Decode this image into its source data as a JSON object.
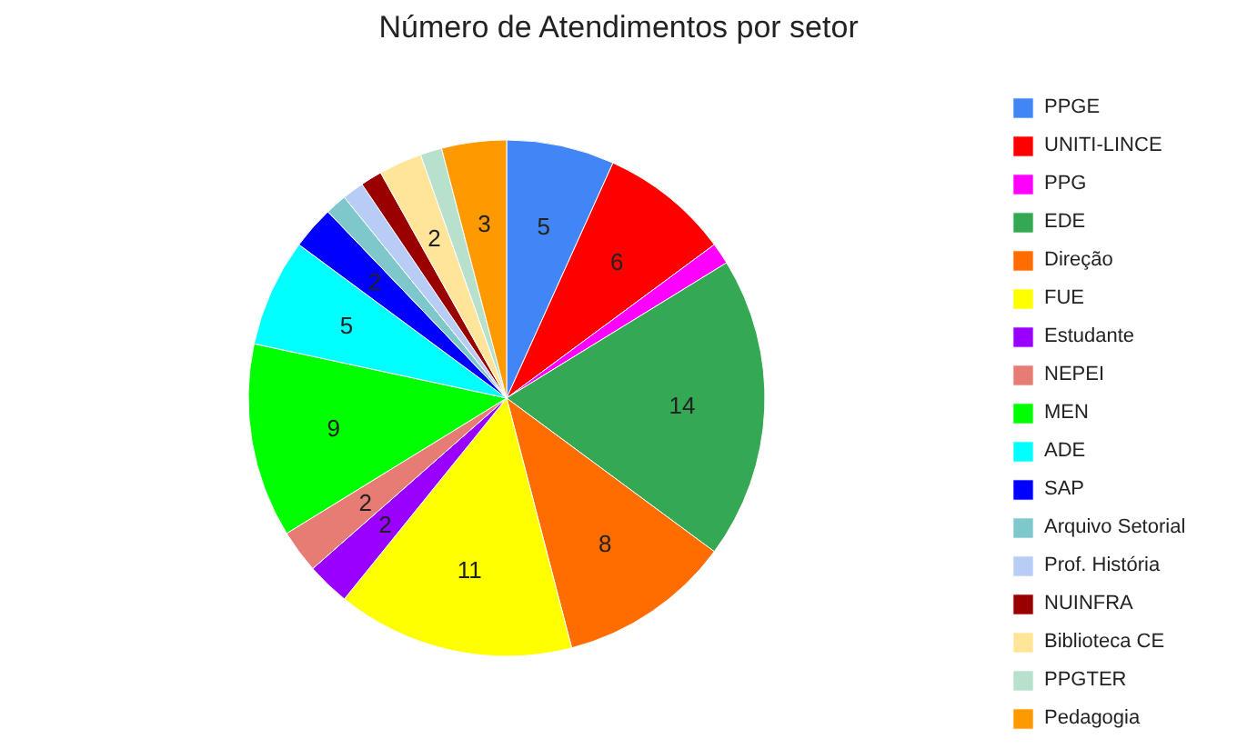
{
  "chart_data": {
    "type": "pie",
    "title": "Número de Atendimentos por setor",
    "categories": [
      "PPGE",
      "UNITI-LINCE",
      "PPG",
      "EDE",
      "Direção",
      "FUE",
      "Estudante",
      "NEPEI",
      "MEN",
      "ADE",
      "SAP",
      "Arquivo Setorial",
      "Prof. História",
      "NUINFRA",
      "Biblioteca CE",
      "PPGTER",
      "Pedagogia"
    ],
    "values": [
      5,
      6,
      1,
      14,
      8,
      11,
      2,
      2,
      9,
      5,
      2,
      1,
      1,
      1,
      2,
      1,
      3
    ],
    "colors": [
      "#4285f4",
      "#ff0000",
      "#ff00ff",
      "#34a853",
      "#ff6d01",
      "#ffff00",
      "#9900ff",
      "#e67c73",
      "#00ff00",
      "#00ffff",
      "#0000ff",
      "#7ec8cc",
      "#b7cdf5",
      "#990000",
      "#ffe599",
      "#b7e1cd",
      "#ff9900"
    ],
    "value_labels": [
      "5",
      "6",
      null,
      "14",
      "8",
      "11",
      "2",
      "2",
      "9",
      "5",
      "2",
      null,
      null,
      null,
      "2",
      null,
      "3"
    ],
    "legend": "right"
  }
}
